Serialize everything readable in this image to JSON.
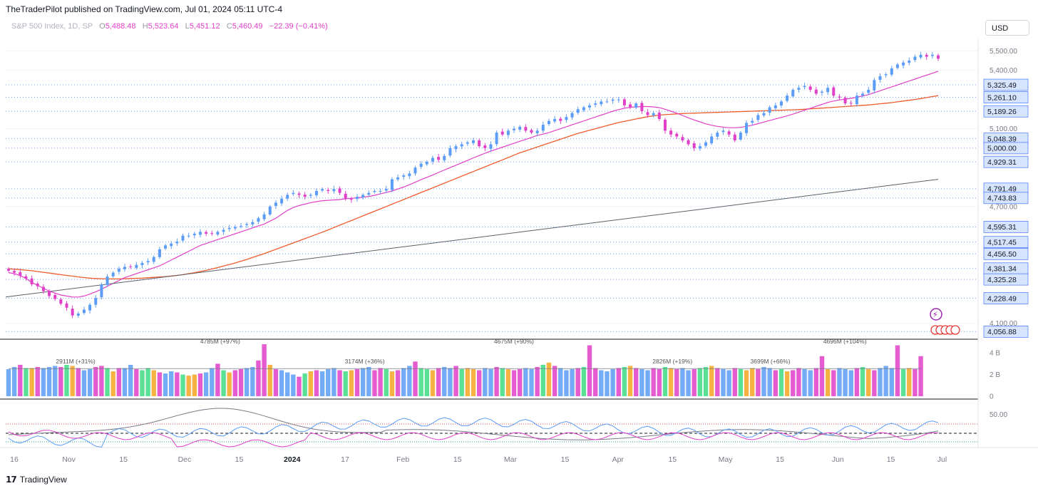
{
  "header": {
    "text": "TheTraderPilot published on TradingView.com, Jul 01, 2024 05:11 UTC-4"
  },
  "legend": {
    "symbol": "S&P 500 Index, 1D, SP",
    "o_label": "O",
    "o_value": "5,488.48",
    "h_label": "H",
    "h_value": "5,523.64",
    "l_label": "L",
    "l_value": "5,451.12",
    "c_label": "C",
    "c_value": "5,460.49",
    "change": "−22.39 (−0.41%)"
  },
  "currency": "USD",
  "footer": {
    "brand": "TradingView"
  },
  "colors": {
    "up": "#5b9cf6",
    "down": "#e040c8",
    "ma_fast": "#e040c8",
    "ma_mid": "#ef5b2a",
    "ma_slow": "#5d606b",
    "level_line": "#6f9ff7",
    "tag_bg": "#d6e4fd",
    "tag_border": "#2962ff"
  },
  "chart_data": {
    "type": "candlestick",
    "title": "S&P 500 Index, 1D, SP",
    "price_axis": {
      "range": [
        4040,
        5560
      ],
      "ticks": [
        {
          "value": 5500,
          "label": "5,500.00"
        },
        {
          "value": 5400,
          "label": "5,400.00"
        },
        {
          "value": 5100,
          "label": "5,100.00"
        },
        {
          "value": 4700,
          "label": "4,700.00"
        },
        {
          "value": 4100,
          "label": "4,100.00"
        }
      ]
    },
    "levels": [
      "5,325.49",
      "5,261.10",
      "5,189.26",
      "5,048.39",
      "5,000.00",
      "4,929.31",
      "4,791.49",
      "4,743.83",
      "4,595.31",
      "4,517.45",
      "4,456.50",
      "4,381.34",
      "4,325.28",
      "4,228.49",
      "4,056.88"
    ],
    "level_values": [
      5325.49,
      5261.1,
      5189.26,
      5048.39,
      5000.0,
      4929.31,
      4791.49,
      4743.83,
      4595.31,
      4517.45,
      4456.5,
      4381.34,
      4325.28,
      4228.49,
      4056.88
    ],
    "x_axis_labels": [
      {
        "label": "16",
        "pos": 0.0
      },
      {
        "label": "Nov",
        "pos": 0.033
      },
      {
        "label": "15",
        "pos": 0.066
      },
      {
        "label": "Dec",
        "pos": 0.103
      },
      {
        "label": "15",
        "pos": 0.136
      },
      {
        "label": "2024",
        "pos": 0.168,
        "bold": true
      },
      {
        "label": "17",
        "pos": 0.2
      },
      {
        "label": "Feb",
        "pos": 0.235
      },
      {
        "label": "15",
        "pos": 0.268
      },
      {
        "label": "Mar",
        "pos": 0.3
      },
      {
        "label": "15",
        "pos": 0.333
      },
      {
        "label": "Apr",
        "pos": 0.365
      },
      {
        "label": "15",
        "pos": 0.398
      },
      {
        "label": "May",
        "pos": 0.43
      },
      {
        "label": "15",
        "pos": 0.463
      },
      {
        "label": "Jun",
        "pos": 0.498
      },
      {
        "label": "15",
        "pos": 0.53
      },
      {
        "label": "Jul",
        "pos": 0.561
      }
    ],
    "closes": [
      4370,
      4360,
      4345,
      4330,
      4300,
      4290,
      4265,
      4240,
      4225,
      4200,
      4180,
      4140,
      4150,
      4170,
      4195,
      4230,
      4300,
      4340,
      4360,
      4380,
      4390,
      4390,
      4400,
      4410,
      4420,
      4440,
      4480,
      4500,
      4510,
      4520,
      4550,
      4550,
      4560,
      4570,
      4560,
      4560,
      4570,
      4580,
      4590,
      4595,
      4600,
      4610,
      4620,
      4640,
      4660,
      4700,
      4720,
      4740,
      4760,
      4770,
      4760,
      4750,
      4760,
      4780,
      4790,
      4780,
      4790,
      4770,
      4740,
      4735,
      4750,
      4760,
      4770,
      4780,
      4780,
      4790,
      4840,
      4850,
      4860,
      4870,
      4900,
      4920,
      4930,
      4950,
      4940,
      4960,
      5000,
      5010,
      5020,
      5030,
      5040,
      5010,
      5000,
      5020,
      5080,
      5070,
      5090,
      5100,
      5110,
      5090,
      5080,
      5090,
      5120,
      5140,
      5150,
      5140,
      5160,
      5180,
      5200,
      5210,
      5220,
      5230,
      5240,
      5240,
      5250,
      5250,
      5220,
      5210,
      5230,
      5190,
      5170,
      5180,
      5150,
      5090,
      5070,
      5060,
      5040,
      5020,
      5000,
      5010,
      5030,
      5060,
      5080,
      5090,
      5070,
      5040,
      5080,
      5130,
      5140,
      5170,
      5180,
      5210,
      5220,
      5240,
      5270,
      5300,
      5310,
      5320,
      5300,
      5280,
      5290,
      5310,
      5270,
      5260,
      5230,
      5230,
      5270,
      5280,
      5300,
      5350,
      5370,
      5380,
      5410,
      5430,
      5440,
      5450,
      5470,
      5480,
      5470,
      5480,
      5460
    ],
    "ma20": [
      4360,
      4355,
      4345,
      4330,
      4310,
      4295,
      4280,
      4265,
      4255,
      4245,
      4240,
      4235,
      4235,
      4240,
      4250,
      4262,
      4275,
      4290,
      4305,
      4320,
      4335,
      4345,
      4355,
      4365,
      4375,
      4385,
      4395,
      4410,
      4425,
      4440,
      4455,
      4470,
      4485,
      4500,
      4510,
      4520,
      4530,
      4540,
      4550,
      4560,
      4570,
      4580,
      4590,
      4600,
      4610,
      4625,
      4640,
      4660,
      4680,
      4695,
      4705,
      4712,
      4720,
      4725,
      4730,
      4732,
      4734,
      4736,
      4740,
      4742,
      4745,
      4748,
      4752,
      4758,
      4765,
      4772,
      4780,
      4790,
      4800,
      4812,
      4825,
      4838,
      4850,
      4862,
      4875,
      4888,
      4900,
      4912,
      4925,
      4937,
      4950,
      4962,
      4974,
      4985,
      4995,
      5005,
      5015,
      5025,
      5035,
      5045,
      5055,
      5065,
      5072,
      5080,
      5090,
      5100,
      5110,
      5120,
      5130,
      5140,
      5150,
      5160,
      5170,
      5180,
      5190,
      5198,
      5205,
      5210,
      5212,
      5214,
      5214,
      5212,
      5208,
      5200,
      5190,
      5180,
      5168,
      5156,
      5145,
      5135,
      5125,
      5118,
      5112,
      5108,
      5105,
      5105,
      5107,
      5112,
      5118,
      5126,
      5134,
      5142,
      5150,
      5158,
      5166,
      5175,
      5185,
      5195,
      5205,
      5215,
      5225,
      5235,
      5242,
      5248,
      5252,
      5256,
      5262,
      5268,
      5275,
      5285,
      5295,
      5305,
      5315,
      5325,
      5335,
      5345,
      5355,
      5365,
      5375,
      5385,
      5395
    ],
    "ma50": [
      4380,
      4378,
      4376,
      4373,
      4370,
      4366,
      4362,
      4358,
      4354,
      4350,
      4346,
      4342,
      4338,
      4335,
      4332,
      4330,
      4329,
      4328,
      4328,
      4328,
      4329,
      4330,
      4331,
      4332,
      4334,
      4336,
      4338,
      4340,
      4343,
      4346,
      4350,
      4355,
      4360,
      4366,
      4372,
      4379,
      4386,
      4394,
      4402,
      4410,
      4419,
      4428,
      4438,
      4448,
      4458,
      4469,
      4480,
      4491,
      4502,
      4513,
      4524,
      4535,
      4546,
      4557,
      4568,
      4580,
      4592,
      4604,
      4616,
      4628,
      4640,
      4652,
      4664,
      4676,
      4688,
      4700,
      4712,
      4724,
      4736,
      4748,
      4760,
      4772,
      4784,
      4796,
      4808,
      4820,
      4832,
      4844,
      4856,
      4868,
      4880,
      4892,
      4904,
      4916,
      4928,
      4940,
      4952,
      4964,
      4976,
      4986,
      4996,
      5006,
      5016,
      5026,
      5036,
      5046,
      5056,
      5066,
      5076,
      5084,
      5092,
      5100,
      5108,
      5116,
      5124,
      5132,
      5138,
      5144,
      5150,
      5156,
      5162,
      5166,
      5170,
      5172,
      5174,
      5176,
      5178,
      5179,
      5180,
      5181,
      5182,
      5183,
      5184,
      5185,
      5186,
      5187,
      5188,
      5189,
      5190,
      5191,
      5192,
      5193,
      5194,
      5195,
      5196,
      5197,
      5198,
      5200,
      5202,
      5204,
      5206,
      5208,
      5210,
      5212,
      5214,
      5216,
      5218,
      5220,
      5222,
      5225,
      5228,
      5231,
      5234,
      5238,
      5242,
      5246,
      5250,
      5255,
      5260,
      5265,
      5270
    ],
    "ma200_start": 4235,
    "ma200_end": 4840,
    "volume_axis": {
      "ticks": [
        {
          "value": 4,
          "label": "4 B"
        },
        {
          "value": 2,
          "label": "2 B"
        },
        {
          "value": 0,
          "label": "0"
        }
      ],
      "max": 5
    },
    "volume_annotations": [
      {
        "label": "2911M (+31%)",
        "pos": 0.075
      },
      {
        "label": "4785M (+97%)",
        "pos": 0.23
      },
      {
        "label": "3174M (+36%)",
        "pos": 0.385
      },
      {
        "label": "4675M (+90%)",
        "pos": 0.545
      },
      {
        "label": "2826M (+19%)",
        "pos": 0.715
      },
      {
        "label": "3699M (+66%)",
        "pos": 0.82
      },
      {
        "label": "4696M (+104%)",
        "pos": 0.9
      }
    ],
    "volumes": [
      2.5,
      2.7,
      2.9,
      2.6,
      2.6,
      2.7,
      2.6,
      2.7,
      2.8,
      2.7,
      2.9,
      2.8,
      2.6,
      2.4,
      2.5,
      2.7,
      2.8,
      2.6,
      2.3,
      2.6,
      2.6,
      2.9,
      2.5,
      2.4,
      2.6,
      2.4,
      2.2,
      2.1,
      2.3,
      2.2,
      2.0,
      1.9,
      2.0,
      2.1,
      2.2,
      2.6,
      3.0,
      2.4,
      2.2,
      2.4,
      2.5,
      2.6,
      2.7,
      3.3,
      4.8,
      2.9,
      2.5,
      2.4,
      2.2,
      2.0,
      1.8,
      2.1,
      2.3,
      2.4,
      2.3,
      2.5,
      2.6,
      2.4,
      2.3,
      2.4,
      2.5,
      2.6,
      2.7,
      2.4,
      2.6,
      2.5,
      2.3,
      2.4,
      2.6,
      2.8,
      3.2,
      2.6,
      2.5,
      2.4,
      2.6,
      2.7,
      2.6,
      2.8,
      2.5,
      2.6,
      2.5,
      2.4,
      2.6,
      2.5,
      2.7,
      2.6,
      2.5,
      2.4,
      2.5,
      2.6,
      2.5,
      2.7,
      2.9,
      3.1,
      2.8,
      2.6,
      2.4,
      2.5,
      2.6,
      2.7,
      4.7,
      2.6,
      2.4,
      2.3,
      2.5,
      2.6,
      2.7,
      2.8,
      2.6,
      2.5,
      2.4,
      2.6,
      2.5,
      2.7,
      2.6,
      2.5,
      2.6,
      2.4,
      2.5,
      2.6,
      2.7,
      2.8,
      2.6,
      2.5,
      2.4,
      2.6,
      2.5,
      2.4,
      2.6,
      2.5,
      2.7,
      2.6,
      2.4,
      2.5,
      2.3,
      2.4,
      2.6,
      2.5,
      2.4,
      2.6,
      3.7,
      2.5,
      2.4,
      2.6,
      2.5,
      2.4,
      2.6,
      2.7,
      2.5,
      2.4,
      2.6,
      2.8,
      2.6,
      4.7,
      2.5,
      2.6,
      2.5,
      3.7
    ],
    "osc_axis": {
      "ticks": [
        {
          "value": 50,
          "label": "50.00"
        }
      ]
    }
  }
}
